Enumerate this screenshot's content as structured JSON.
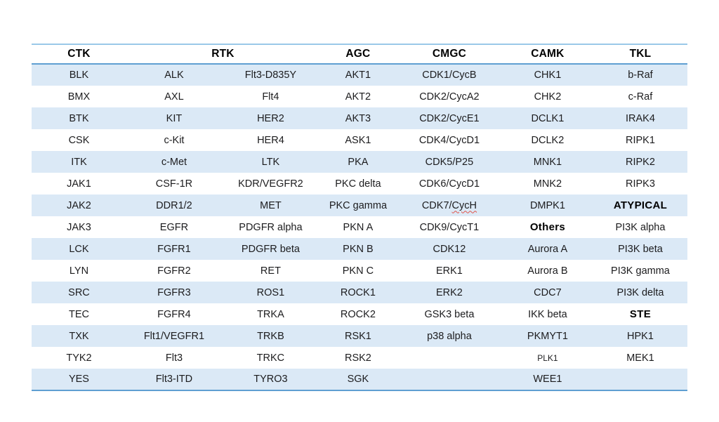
{
  "chart_data": {
    "type": "table",
    "title": "Kinase panel table",
    "header_groups": [
      {
        "label": "CTK",
        "span": 1
      },
      {
        "label": "RTK",
        "span": 2
      },
      {
        "label": "AGC",
        "span": 1
      },
      {
        "label": "CMGC",
        "span": 1
      },
      {
        "label": "CAMK",
        "span": 1
      },
      {
        "label": "TKL",
        "span": 1
      }
    ],
    "rows": [
      [
        "BLK",
        "ALK",
        "Flt3-D835Y",
        "AKT1",
        "CDK1/CycB",
        "CHK1",
        "b-Raf"
      ],
      [
        "BMX",
        "AXL",
        "Flt4",
        "AKT2",
        "CDK2/CycA2",
        "CHK2",
        "c-Raf"
      ],
      [
        "BTK",
        "KIT",
        "HER2",
        "AKT3",
        "CDK2/CycE1",
        "DCLK1",
        "IRAK4"
      ],
      [
        "CSK",
        "c-Kit",
        "HER4",
        "ASK1",
        "CDK4/CycD1",
        "DCLK2",
        "RIPK1"
      ],
      [
        "ITK",
        "c-Met",
        "LTK",
        "PKA",
        "CDK5/P25",
        "MNK1",
        "RIPK2"
      ],
      [
        "JAK1",
        "CSF-1R",
        "KDR/VEGFR2",
        "PKC delta",
        "CDK6/CycD1",
        "MNK2",
        "RIPK3"
      ],
      [
        "JAK2",
        "DDR1/2",
        "MET",
        "PKC gamma",
        {
          "text": "CDK7/CycH",
          "misspelled_part": "CycH"
        },
        "DMPK1",
        {
          "text": "ATYPICAL",
          "bold": true
        }
      ],
      [
        "JAK3",
        "EGFR",
        "PDGFR alpha",
        "PKN A",
        "CDK9/CycT1",
        {
          "text": "Others",
          "bold": true
        },
        "PI3K alpha"
      ],
      [
        "LCK",
        "FGFR1",
        "PDGFR beta",
        "PKN B",
        "CDK12",
        "Aurora A",
        "PI3K beta"
      ],
      [
        "LYN",
        "FGFR2",
        "RET",
        "PKN C",
        "ERK1",
        "Aurora B",
        "PI3K gamma"
      ],
      [
        "SRC",
        "FGFR3",
        "ROS1",
        "ROCK1",
        "ERK2",
        "CDC7",
        "PI3K delta"
      ],
      [
        "TEC",
        "FGFR4",
        "TRKA",
        "ROCK2",
        "GSK3 beta",
        "IKK beta",
        {
          "text": "STE",
          "bold": true
        }
      ],
      [
        "TXK",
        "Flt1/VEGFR1",
        "TRKB",
        "RSK1",
        "p38 alpha",
        "PKMYT1",
        "HPK1"
      ],
      [
        "TYK2",
        "Flt3",
        "TRKC",
        "RSK2",
        "",
        {
          "text": "PLK1",
          "small": true
        },
        "MEK1"
      ],
      [
        "YES",
        "Flt3-ITD",
        "TYRO3",
        "SGK",
        "",
        "WEE1",
        ""
      ]
    ],
    "layout_hints": {
      "banding": "odd data rows shaded light blue",
      "alignment": "center",
      "rules": "horizontal rule above header, below header and below last row"
    }
  },
  "colors": {
    "band_fill": "#dbe9f6",
    "rule_strong": "#5f9fd2",
    "rule_light": "#9ac8e8",
    "text": "#1c1c1e",
    "misspell_underline": "#e0524a"
  }
}
